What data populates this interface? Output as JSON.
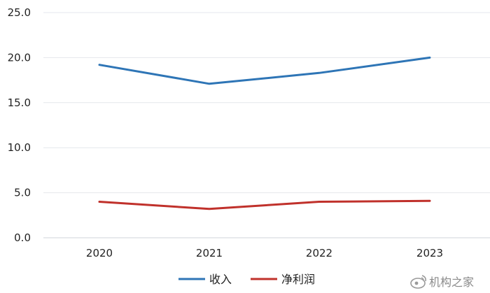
{
  "chart_data": {
    "type": "line",
    "categories": [
      "2020",
      "2021",
      "2022",
      "2023"
    ],
    "series": [
      {
        "name": "收入",
        "values": [
          19.2,
          17.1,
          18.3,
          20.0
        ],
        "color": "#2E75B6"
      },
      {
        "name": "净利润",
        "values": [
          4.0,
          3.2,
          4.0,
          4.1
        ],
        "color": "#C0312B"
      }
    ],
    "yticks": [
      "0.0",
      "5.0",
      "10.0",
      "15.0",
      "20.0",
      "25.0"
    ],
    "ylim": [
      0,
      25
    ],
    "grid": true,
    "legend": "bottom-center",
    "title": "",
    "xlabel": "",
    "ylabel": ""
  },
  "watermark": {
    "text": "机构之家",
    "icon": "weibo-icon"
  }
}
